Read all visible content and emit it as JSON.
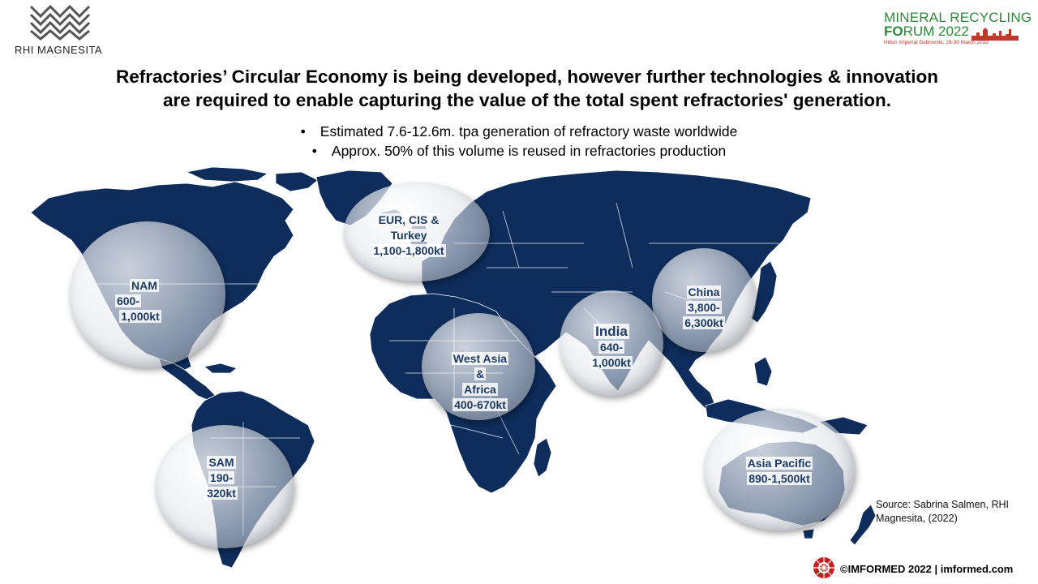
{
  "header": {
    "left_logo_text": "RHI MAGNESITA",
    "right_logo": {
      "line1": "MINERAL RECYCLING",
      "line2_bold": "FO",
      "line2_rest": "RUM 2022",
      "line3": "Hilton Imperial Dubrovnik, 28-30 March 2022"
    }
  },
  "title": {
    "line1": "Refractories’ Circular Economy is being developed, however further technologies & innovation",
    "line2": "are required to enable capturing the value of the total spent refractories' generation."
  },
  "bullets": [
    "Estimated 7.6-12.6m. tpa generation of refractory waste worldwide",
    "Approx. 50% of this volume is reused in refractories production"
  ],
  "bullet_symbol": "•",
  "map": {
    "land_color": "#0e2d5c",
    "border_color": "#ffffff",
    "regions": [
      {
        "id": "nam",
        "lines": [
          "NAM",
          "600-",
          "1,000kt"
        ]
      },
      {
        "id": "eur",
        "lines": [
          "EUR, CIS &",
          "Turkey",
          "1,100-1,800kt"
        ]
      },
      {
        "id": "china",
        "lines": [
          "China",
          "3,800-",
          "6,300kt"
        ]
      },
      {
        "id": "india",
        "lines": [
          "India",
          "640-",
          "1,000kt"
        ]
      },
      {
        "id": "waf",
        "lines": [
          "West Asia",
          "&",
          "Africa",
          "400-670kt"
        ]
      },
      {
        "id": "sam",
        "lines": [
          "SAM",
          "190-",
          "320kt"
        ]
      },
      {
        "id": "apac",
        "lines": [
          "Asia Pacific",
          "890-1,500kt"
        ]
      }
    ]
  },
  "source": {
    "line1": "Source: Sabrina Salmen, RHI",
    "line2": "Magnesita, (2022)"
  },
  "footer": {
    "text": "©IMFORMED 2022  | imformed.com",
    "icon": "imformed-logo-icon"
  }
}
